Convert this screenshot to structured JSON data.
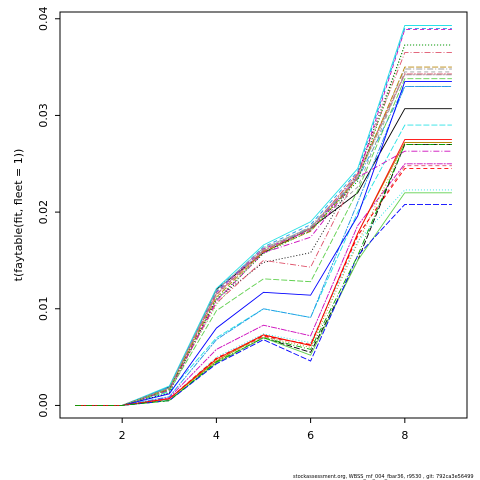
{
  "chart_data": {
    "type": "line",
    "title": "",
    "xlabel": "",
    "ylabel": "t(faytable(fit, fleet = 1))",
    "x": [
      1,
      2,
      3,
      4,
      5,
      6,
      7,
      8,
      9
    ],
    "xlim": [
      0.68,
      9.32
    ],
    "ylim": [
      -0.0013,
      0.0407
    ],
    "xticks": [
      2,
      4,
      6,
      8
    ],
    "yticks": [
      0.0,
      0.01,
      0.02,
      0.03,
      0.04
    ],
    "ytick_labels": [
      "0.00",
      "0.01",
      "0.02",
      "0.03",
      "0.04"
    ],
    "grid": false,
    "series": [
      {
        "color": "#000000",
        "dash": "",
        "values": [
          0,
          0,
          0.0019,
          0.012,
          0.0158,
          0.0183,
          0.022,
          0.0307,
          0.0307
        ]
      },
      {
        "color": "#DF536B",
        "dash": "4,3",
        "values": [
          0,
          0,
          0.0006,
          0.0048,
          0.0071,
          0.0063,
          0.0175,
          0.0248,
          0.0248
        ]
      },
      {
        "color": "#61D04F",
        "dash": "1,2",
        "values": [
          0,
          0,
          0.0017,
          0.0104,
          0.0162,
          0.0183,
          0.0232,
          0.0373,
          0.0373
        ]
      },
      {
        "color": "#2297E6",
        "dash": "6,2,1,2",
        "values": [
          0,
          0,
          0.0019,
          0.0121,
          0.016,
          0.0184,
          0.0234,
          0.033,
          0.033
        ]
      },
      {
        "color": "#28E2E5",
        "dash": "6,2",
        "values": [
          0,
          0,
          0.0014,
          0.007,
          0.01,
          0.0091,
          0.02,
          0.029,
          0.029
        ]
      },
      {
        "color": "#CD0BBC",
        "dash": "2,1,6,1",
        "values": [
          0,
          0,
          0.0008,
          0.0058,
          0.0083,
          0.0072,
          0.0186,
          0.025,
          0.025
        ]
      },
      {
        "color": "#B8860B",
        "dash": "",
        "values": [
          0,
          0,
          0.0007,
          0.0046,
          0.0073,
          0.0062,
          0.0178,
          0.0272,
          0.0272
        ]
      },
      {
        "color": "#9E9E9E",
        "dash": "4,3",
        "values": [
          0,
          0,
          0.0018,
          0.0114,
          0.016,
          0.0182,
          0.0226,
          0.0345,
          0.0345
        ]
      },
      {
        "color": "#000000",
        "dash": "1,2",
        "values": [
          0,
          0,
          0.0013,
          0.011,
          0.0148,
          0.0158,
          0.024,
          0.0373,
          0.0373
        ]
      },
      {
        "color": "#DF536B",
        "dash": "6,2,1,2",
        "values": [
          0,
          0,
          0.0016,
          0.0106,
          0.015,
          0.0143,
          0.024,
          0.0365,
          0.0365
        ]
      },
      {
        "color": "#61D04F",
        "dash": "6,2",
        "values": [
          0,
          0,
          0.0015,
          0.0098,
          0.0131,
          0.0128,
          0.0222,
          0.0338,
          0.0338
        ]
      },
      {
        "color": "#2297E6",
        "dash": "2,1,6,1",
        "values": [
          0,
          0,
          0.0009,
          0.0068,
          0.01,
          0.0091,
          0.021,
          0.033,
          0.033
        ]
      },
      {
        "color": "#28E2E5",
        "dash": "",
        "values": [
          0,
          0,
          0.002,
          0.0121,
          0.0166,
          0.019,
          0.0245,
          0.0393,
          0.0393
        ]
      },
      {
        "color": "#CD0BBC",
        "dash": "4,3",
        "values": [
          0,
          0,
          0.0018,
          0.0117,
          0.0162,
          0.0181,
          0.0237,
          0.0389,
          0.0389
        ]
      },
      {
        "color": "#B8860B",
        "dash": "1,2",
        "values": [
          0,
          0,
          0.0006,
          0.0047,
          0.0071,
          0.006,
          0.0168,
          0.027,
          0.027
        ]
      },
      {
        "color": "#9E9E9E",
        "dash": "6,2,1,2",
        "values": [
          0,
          0,
          0.0018,
          0.0116,
          0.0161,
          0.0185,
          0.0238,
          0.0348,
          0.0348
        ]
      },
      {
        "color": "#000000",
        "dash": "6,2",
        "values": [
          0,
          0,
          0.0005,
          0.0044,
          0.007,
          0.0055,
          0.015,
          0.027,
          0.027
        ]
      },
      {
        "color": "#DF536B",
        "dash": "2,1,6,1",
        "values": [
          0,
          0,
          0.0018,
          0.0115,
          0.016,
          0.0183,
          0.024,
          0.0343,
          0.0343
        ]
      },
      {
        "color": "#61D04F",
        "dash": "",
        "values": [
          0,
          0,
          0.0005,
          0.0044,
          0.007,
          0.0052,
          0.015,
          0.022,
          0.022
        ]
      },
      {
        "color": "#2297E6",
        "dash": "4,3",
        "values": [
          0,
          0,
          0.0019,
          0.0118,
          0.0164,
          0.0187,
          0.0242,
          0.039,
          0.039
        ]
      },
      {
        "color": "#28E2E5",
        "dash": "1,2",
        "values": [
          0,
          0,
          0.0006,
          0.005,
          0.0074,
          0.0065,
          0.017,
          0.0223,
          0.0223
        ]
      },
      {
        "color": "#CD0BBC",
        "dash": "6,2,1,2",
        "values": [
          0,
          0,
          0.0016,
          0.0108,
          0.0158,
          0.0174,
          0.0236,
          0.0263,
          0.0263
        ]
      },
      {
        "color": "#B8860B",
        "dash": "6,2",
        "values": [
          0,
          0,
          0.0017,
          0.0112,
          0.0159,
          0.018,
          0.0235,
          0.035,
          0.035
        ]
      },
      {
        "color": "#9E9E9E",
        "dash": "2,1,6,1",
        "values": [
          0,
          0,
          0.0018,
          0.0119,
          0.0163,
          0.0184,
          0.0236,
          0.0342,
          0.0342
        ]
      },
      {
        "color": "#0000FF",
        "dash": "",
        "values": [
          0,
          0,
          0.0012,
          0.008,
          0.0117,
          0.0114,
          0.0196,
          0.0335,
          0.0335
        ]
      },
      {
        "color": "#FF0000",
        "dash": "4,3",
        "values": [
          0,
          0,
          0.0007,
          0.0049,
          0.0072,
          0.0063,
          0.0176,
          0.0245,
          0.0245
        ]
      },
      {
        "color": "#00AA00",
        "dash": "1,2",
        "values": [
          0,
          0,
          0.0017,
          0.011,
          0.0157,
          0.0181,
          0.0232,
          0.0373,
          0.0373
        ]
      },
      {
        "color": "#0000FF",
        "dash": "6,2",
        "values": [
          0,
          0,
          0.0005,
          0.0043,
          0.0068,
          0.0046,
          0.0155,
          0.0208,
          0.0208
        ]
      },
      {
        "color": "#FF0000",
        "dash": "",
        "values": [
          0,
          0,
          0.0007,
          0.0048,
          0.0073,
          0.0062,
          0.0178,
          0.0275,
          0.0275
        ]
      },
      {
        "color": "#00AA00",
        "dash": "6,2,1,2",
        "values": [
          0,
          0,
          0.0005,
          0.0045,
          0.007,
          0.0058,
          0.0155,
          0.027,
          0.027
        ]
      }
    ]
  },
  "footer": {
    "text": "stockassessment.org, WBSS_mf_004_fbar36, r9530 , git: 792ca3e56499"
  }
}
